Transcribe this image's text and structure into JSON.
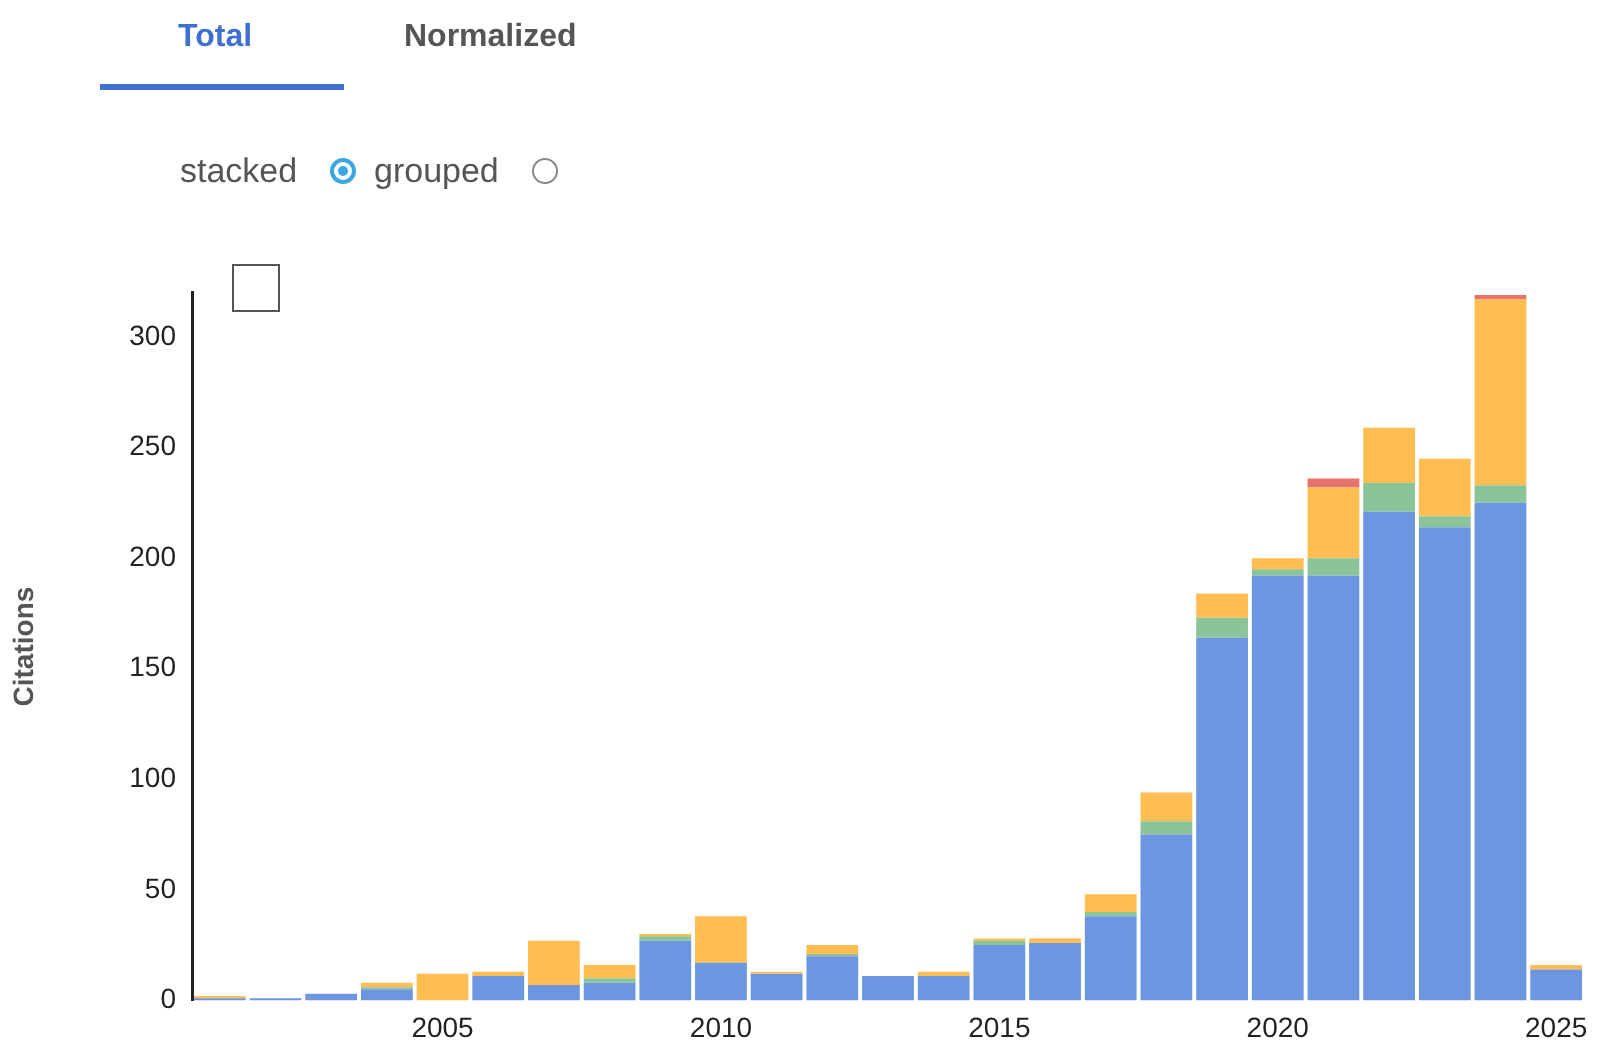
{
  "chart_data": {
    "type": "bar",
    "stacked": true,
    "ylabel": "Citations",
    "annotations": [
      "Total",
      "Normalized",
      "stacked",
      "grouped"
    ],
    "categories": [
      null,
      null,
      null,
      null,
      "2005",
      null,
      null,
      null,
      null,
      "2010",
      null,
      null,
      null,
      null,
      "2015",
      null,
      null,
      null,
      null,
      "2020",
      null,
      null,
      null,
      null,
      "2025"
    ],
    "series": [
      {
        "color": "#6c96e0",
        "values": [
          1,
          1,
          3,
          5,
          0,
          11,
          7,
          8,
          27,
          17,
          12,
          20,
          11,
          11,
          25,
          26,
          38,
          75,
          164,
          192,
          192,
          221,
          214,
          225,
          14
        ]
      },
      {
        "color": "#8cc49a",
        "values": [
          0,
          0,
          0,
          1,
          0,
          0,
          0,
          2,
          2,
          0,
          0,
          1,
          0,
          0,
          2,
          0,
          2,
          6,
          9,
          3,
          8,
          13,
          5,
          8,
          0
        ]
      },
      {
        "color": "#ffbd52",
        "values": [
          1,
          0,
          0,
          2,
          12,
          2,
          20,
          6,
          1,
          21,
          1,
          4,
          0,
          2,
          1,
          2,
          8,
          13,
          11,
          5,
          32,
          25,
          26,
          84,
          2
        ]
      },
      {
        "color": "#e8736a",
        "values": [
          0,
          0,
          0,
          0,
          0,
          0,
          0,
          0,
          0,
          0,
          0,
          0,
          0,
          0,
          0,
          0,
          0,
          0,
          0,
          0,
          4,
          0,
          0,
          2,
          0
        ]
      }
    ],
    "ylim": [
      0,
      320
    ],
    "yticks": [
      0,
      50,
      100,
      150,
      200,
      250,
      300
    ],
    "grid": false,
    "legend": false
  }
}
